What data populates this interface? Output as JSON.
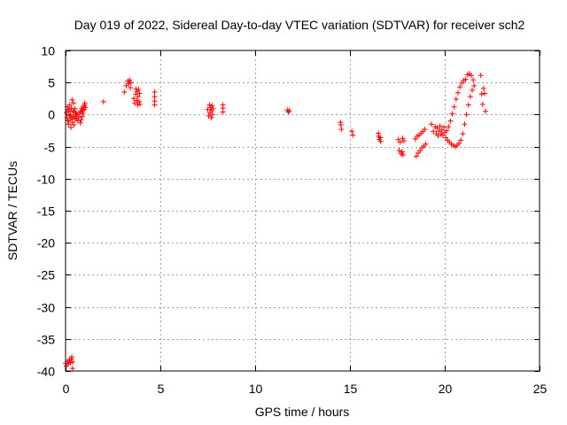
{
  "chart_data": {
    "type": "scatter",
    "title": "Day 019 of 2022, Sidereal Day-to-day VTEC variation (SDTVAR) for receiver sch2",
    "xlabel": "GPS time / hours",
    "ylabel": "SDTVAR / TECUs",
    "xlim": [
      0,
      25
    ],
    "ylim": [
      -40,
      10
    ],
    "xticks": [
      0,
      5,
      10,
      15,
      20,
      25
    ],
    "yticks": [
      10,
      5,
      0,
      -5,
      -10,
      -15,
      -20,
      -25,
      -30,
      -35,
      -40
    ],
    "grid": true,
    "marker": "+",
    "color": "#ff0000",
    "series": [
      {
        "name": "SDTVAR",
        "points": [
          [
            0.0,
            -38.8
          ],
          [
            0.05,
            -39.2
          ],
          [
            0.1,
            -38.5
          ],
          [
            0.15,
            -38.9
          ],
          [
            0.2,
            -38.3
          ],
          [
            0.25,
            -38.7
          ],
          [
            0.3,
            -38.1
          ],
          [
            0.33,
            -37.8
          ],
          [
            0.36,
            -39.6
          ],
          [
            0.38,
            -38.6
          ],
          [
            0.05,
            0.3
          ],
          [
            0.08,
            -0.5
          ],
          [
            0.1,
            1.2
          ],
          [
            0.12,
            -1.0
          ],
          [
            0.14,
            0.8
          ],
          [
            0.16,
            -1.5
          ],
          [
            0.18,
            0.5
          ],
          [
            0.2,
            -0.2
          ],
          [
            0.22,
            1.5
          ],
          [
            0.24,
            -0.8
          ],
          [
            0.26,
            0.0
          ],
          [
            0.28,
            -2.0
          ],
          [
            0.3,
            1.0
          ],
          [
            0.32,
            -0.5
          ],
          [
            0.34,
            2.3
          ],
          [
            0.36,
            -1.2
          ],
          [
            0.38,
            0.6
          ],
          [
            0.4,
            -0.3
          ],
          [
            0.42,
            1.8
          ],
          [
            0.44,
            -1.6
          ],
          [
            0.46,
            0.4
          ],
          [
            0.48,
            -0.7
          ],
          [
            0.5,
            0.9
          ],
          [
            0.52,
            -0.2
          ],
          [
            0.55,
            0.2
          ],
          [
            0.58,
            -0.6
          ],
          [
            0.6,
            0.0
          ],
          [
            0.65,
            -1.0
          ],
          [
            0.7,
            -0.4
          ],
          [
            0.75,
            0.3
          ],
          [
            0.78,
            -1.3
          ],
          [
            0.8,
            0.5
          ],
          [
            0.82,
            -0.8
          ],
          [
            0.85,
            1.0
          ],
          [
            0.88,
            -0.3
          ],
          [
            0.9,
            0.6
          ],
          [
            0.92,
            0.2
          ],
          [
            0.95,
            1.2
          ],
          [
            0.98,
            0.8
          ],
          [
            1.0,
            1.5
          ],
          [
            1.02,
            1.8
          ],
          [
            1.05,
            1.1
          ],
          [
            2.0,
            2.0
          ],
          [
            3.1,
            3.5
          ],
          [
            3.2,
            4.5
          ],
          [
            3.28,
            5.2
          ],
          [
            3.33,
            4.8
          ],
          [
            3.38,
            5.4
          ],
          [
            3.42,
            4.2
          ],
          [
            3.45,
            5.0
          ],
          [
            3.6,
            2.5
          ],
          [
            3.65,
            1.8
          ],
          [
            3.7,
            3.2
          ],
          [
            3.72,
            4.0
          ],
          [
            3.75,
            2.2
          ],
          [
            3.78,
            3.6
          ],
          [
            3.8,
            1.5
          ],
          [
            3.82,
            2.8
          ],
          [
            3.85,
            3.9
          ],
          [
            3.88,
            2.0
          ],
          [
            3.9,
            3.3
          ],
          [
            3.92,
            1.6
          ],
          [
            4.7,
            3.5
          ],
          [
            4.7,
            2.8
          ],
          [
            4.7,
            2.1
          ],
          [
            4.7,
            1.5
          ],
          [
            7.5,
            0.8
          ],
          [
            7.55,
            -0.2
          ],
          [
            7.6,
            1.5
          ],
          [
            7.62,
            0.3
          ],
          [
            7.65,
            1.1
          ],
          [
            7.68,
            -0.5
          ],
          [
            7.7,
            0.6
          ],
          [
            7.72,
            1.4
          ],
          [
            7.75,
            0.0
          ],
          [
            7.78,
            0.9
          ],
          [
            8.3,
            1.5
          ],
          [
            8.3,
            1.0
          ],
          [
            8.3,
            0.4
          ],
          [
            11.7,
            0.7
          ],
          [
            11.75,
            0.4
          ],
          [
            11.8,
            0.6
          ],
          [
            14.5,
            -1.2
          ],
          [
            14.52,
            -1.6
          ],
          [
            14.55,
            -2.3
          ],
          [
            15.1,
            -2.6
          ],
          [
            15.15,
            -3.2
          ],
          [
            16.5,
            -2.9
          ],
          [
            16.52,
            -3.4
          ],
          [
            16.55,
            -3.9
          ],
          [
            16.6,
            -3.6
          ],
          [
            16.62,
            -4.2
          ],
          [
            17.55,
            -3.9
          ],
          [
            17.6,
            -5.6
          ],
          [
            17.65,
            -4.3
          ],
          [
            17.7,
            -6.1
          ],
          [
            17.75,
            -5.8
          ],
          [
            17.78,
            -3.7
          ],
          [
            17.8,
            -6.3
          ],
          [
            17.85,
            -4.1
          ],
          [
            18.45,
            -3.8
          ],
          [
            18.5,
            -6.5
          ],
          [
            18.55,
            -3.4
          ],
          [
            18.6,
            -6.0
          ],
          [
            18.65,
            -3.2
          ],
          [
            18.7,
            -5.6
          ],
          [
            18.75,
            -2.9
          ],
          [
            18.8,
            -5.2
          ],
          [
            18.85,
            -2.6
          ],
          [
            18.9,
            -4.9
          ],
          [
            18.95,
            -2.3
          ],
          [
            19.0,
            -4.6
          ],
          [
            19.3,
            -1.5
          ],
          [
            19.4,
            -2.6
          ],
          [
            19.5,
            -1.9
          ],
          [
            19.55,
            -3.0
          ],
          [
            19.6,
            -2.1
          ],
          [
            19.65,
            -3.3
          ],
          [
            19.7,
            -2.6
          ],
          [
            19.75,
            -1.8
          ],
          [
            19.8,
            -3.0
          ],
          [
            19.85,
            -2.4
          ],
          [
            19.9,
            -3.2
          ],
          [
            19.95,
            -2.0
          ],
          [
            20.0,
            -2.8
          ],
          [
            20.05,
            -3.6
          ],
          [
            20.1,
            -2.5
          ],
          [
            20.15,
            -4.0
          ],
          [
            20.2,
            -1.9
          ],
          [
            20.25,
            -4.3
          ],
          [
            20.3,
            -1.0
          ],
          [
            20.35,
            -4.6
          ],
          [
            20.4,
            0.1
          ],
          [
            20.45,
            -4.8
          ],
          [
            20.5,
            1.2
          ],
          [
            20.55,
            -5.0
          ],
          [
            20.6,
            2.4
          ],
          [
            20.65,
            -4.8
          ],
          [
            20.7,
            3.4
          ],
          [
            20.75,
            -4.5
          ],
          [
            20.8,
            4.3
          ],
          [
            20.85,
            -4.0
          ],
          [
            20.9,
            4.9
          ],
          [
            20.95,
            -3.0
          ],
          [
            21.0,
            5.3
          ],
          [
            21.05,
            -1.5
          ],
          [
            21.1,
            5.5
          ],
          [
            21.15,
            0.0
          ],
          [
            21.2,
            6.2
          ],
          [
            21.25,
            1.5
          ],
          [
            21.3,
            6.4
          ],
          [
            21.35,
            2.8
          ],
          [
            21.4,
            6.1
          ],
          [
            21.45,
            3.8
          ],
          [
            21.5,
            5.4
          ],
          [
            21.55,
            4.5
          ],
          [
            21.9,
            6.1
          ],
          [
            21.95,
            3.2
          ],
          [
            22.0,
            1.6
          ],
          [
            22.05,
            4.1
          ],
          [
            22.1,
            3.3
          ],
          [
            22.15,
            0.5
          ]
        ]
      }
    ]
  }
}
